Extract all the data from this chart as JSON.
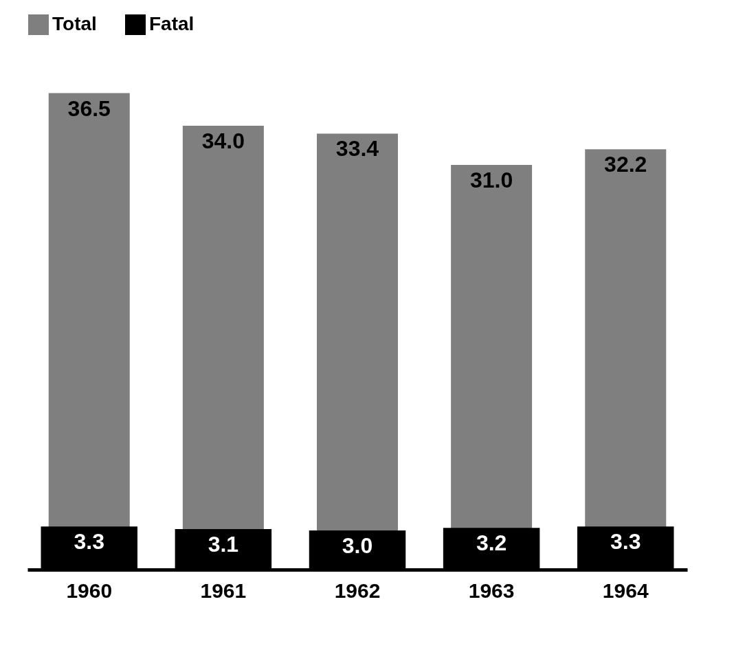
{
  "chart_data": {
    "type": "bar",
    "categories": [
      "1960",
      "1961",
      "1962",
      "1963",
      "1964"
    ],
    "series": [
      {
        "name": "Total",
        "color": "#7f7f7f",
        "values": [
          36.5,
          34.0,
          33.4,
          31.0,
          32.2
        ],
        "value_labels": [
          "36.5",
          "34.0",
          "33.4",
          "31.0",
          "32.2"
        ]
      },
      {
        "name": "Fatal",
        "color": "#000000",
        "values": [
          3.3,
          3.1,
          3.0,
          3.2,
          3.3
        ],
        "value_labels": [
          "3.3",
          "3.1",
          "3.0",
          "3.2",
          "3.3"
        ]
      }
    ],
    "legend": "top"
  }
}
